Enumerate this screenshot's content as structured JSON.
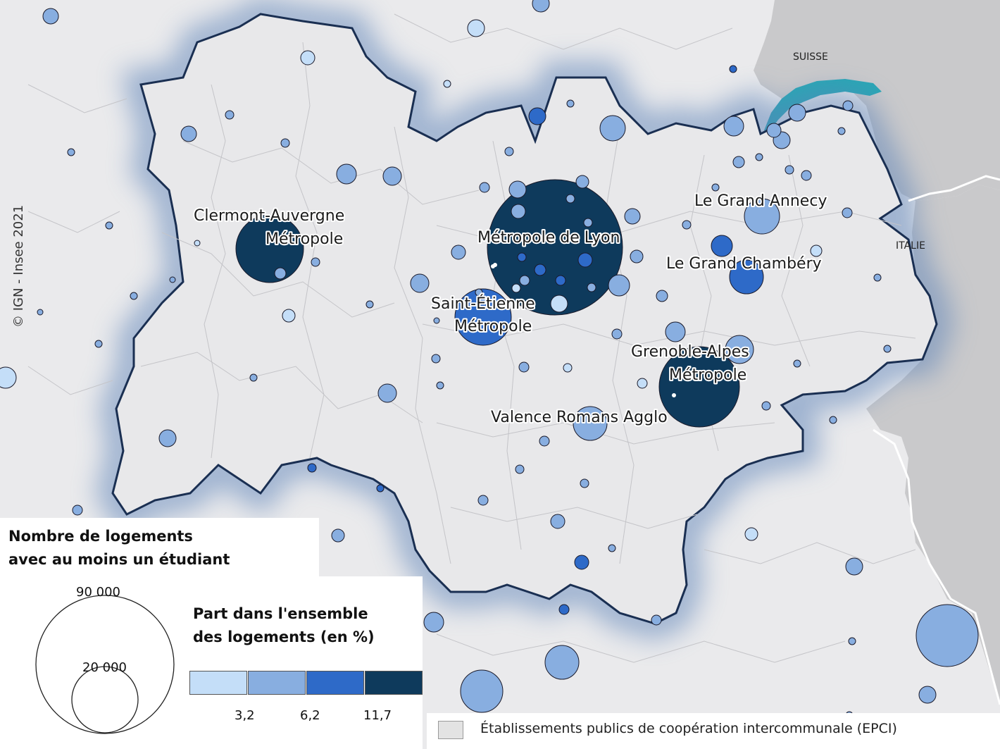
{
  "map": {
    "copyright": "© IGN - Insee 2021",
    "countries": [
      "SUISSE",
      "ITALIE"
    ],
    "city_labels": [
      {
        "id": "clermont",
        "lines": [
          "Clermont-Auvergne",
          "Métropole"
        ]
      },
      {
        "id": "lyon",
        "lines": [
          "Métropole de Lyon"
        ]
      },
      {
        "id": "saint-etienne",
        "lines": [
          "Saint-Étienne",
          "Métropole"
        ]
      },
      {
        "id": "annecy",
        "lines": [
          "Le Grand Annecy"
        ]
      },
      {
        "id": "chambery",
        "lines": [
          "Le Grand Chambéry"
        ]
      },
      {
        "id": "grenoble",
        "lines": [
          "Grenoble-Alpes",
          "Métropole"
        ]
      },
      {
        "id": "valence",
        "lines": [
          "Valence Romans Agglo"
        ]
      }
    ]
  },
  "legend": {
    "size_title_line1": "Nombre de logements",
    "size_title_line2": "avec au moins un étudiant",
    "size_values": [
      "90 000",
      "20 000"
    ],
    "share_title_line1": "Part dans l'ensemble",
    "share_title_line2": "des logements (en %)",
    "class_breaks": [
      "3,2",
      "6,2",
      "11,7"
    ],
    "class_colors": [
      "#c4def8",
      "#88aee0",
      "#2e6ac8",
      "#0e3a5c"
    ],
    "epci_label": "Établissements publics  de coopération intercommunale  (EPCI)"
  },
  "colors": {
    "region_fill": "#e8e8ea",
    "outside_fill": "#e9e9eb",
    "foreign_fill": "#c8c8ca",
    "lake": "#2aa6b5",
    "border": "#1a2f52"
  }
}
